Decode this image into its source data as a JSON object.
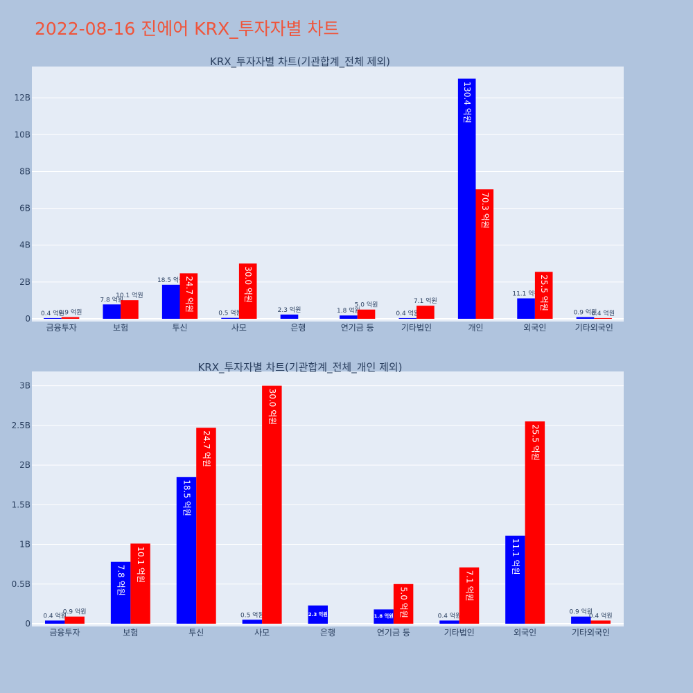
{
  "page": {
    "title": "2022-08-16 진에어 KRX_투자자별 차트"
  },
  "colors": {
    "background": "#b0c4de",
    "plot_bg": "#e5ecf6",
    "title": "#ef553b",
    "text": "#2a3f5f",
    "grid": "#ffffff",
    "series_1": "#0000ff",
    "series_2": "#ff0000"
  },
  "chart_data": [
    {
      "type": "bar",
      "title": "KRX_투자자별 차트(기관합계_전체 제외)",
      "xlabel": "",
      "ylabel": "",
      "categories": [
        "금융투자",
        "보험",
        "투신",
        "사모",
        "은행",
        "연기금 등",
        "기타법인",
        "개인",
        "외국인",
        "기타외국인"
      ],
      "ylim": [
        0,
        13.7
      ],
      "yticks": [
        0,
        2,
        4,
        6,
        8,
        10,
        12
      ],
      "ytick_labels": [
        "0",
        "2B",
        "4B",
        "6B",
        "8B",
        "10B",
        "12B"
      ],
      "grid": true,
      "series": [
        {
          "color": "#0000ff",
          "values": [
            0.04,
            0.78,
            1.85,
            0.05,
            0.23,
            0.18,
            0.04,
            13.04,
            1.11,
            0.09
          ],
          "labels": [
            "0.4 억원",
            "7.8 억원",
            "18.5 억원",
            "0.5 억원",
            "2.3 억원",
            "1.8 억원",
            "0.4 억원",
            "130.4 억원",
            "11.1 억원",
            "0.9 억원"
          ]
        },
        {
          "color": "#ff0000",
          "values": [
            0.09,
            1.01,
            2.47,
            3.0,
            null,
            0.5,
            0.71,
            7.03,
            2.55,
            0.04
          ],
          "labels": [
            "0.9 억원",
            "10.1 억원",
            "24.7 억원",
            "30.0 억원",
            "",
            "5.0 억원",
            "7.1 억원",
            "70.3 억원",
            "25.5 억원",
            "0.4 억원"
          ]
        }
      ]
    },
    {
      "type": "bar",
      "title": "KRX_투자자별 차트(기관합계_전체_개인 제외)",
      "xlabel": "",
      "ylabel": "",
      "categories": [
        "금융투자",
        "보험",
        "투신",
        "사모",
        "은행",
        "연기금 등",
        "기타법인",
        "외국인",
        "기타외국인"
      ],
      "ylim": [
        0,
        3.18
      ],
      "yticks": [
        0,
        0.5,
        1,
        1.5,
        2,
        2.5,
        3
      ],
      "ytick_labels": [
        "0",
        "0.5B",
        "1B",
        "1.5B",
        "2B",
        "2.5B",
        "3B"
      ],
      "grid": true,
      "series": [
        {
          "color": "#0000ff",
          "values": [
            0.04,
            0.78,
            1.85,
            0.05,
            0.23,
            0.18,
            0.04,
            1.11,
            0.09
          ],
          "labels": [
            "0.4 억원",
            "7.8 억원",
            "18.5 억원",
            "0.5 억원",
            "2.3 억원",
            "1.8 억원",
            "0.4 억원",
            "11.1 억원",
            "0.9 억원"
          ]
        },
        {
          "color": "#ff0000",
          "values": [
            0.09,
            1.01,
            2.47,
            3.0,
            null,
            0.5,
            0.71,
            2.55,
            0.04
          ],
          "labels": [
            "0.9 억원",
            "10.1 억원",
            "24.7 억원",
            "30.0 억원",
            "",
            "5.0 억원",
            "7.1 억원",
            "25.5 억원",
            "0.4 억원"
          ]
        }
      ]
    }
  ]
}
